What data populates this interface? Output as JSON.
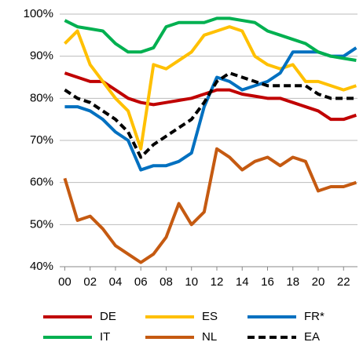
{
  "chart_data": {
    "type": "line",
    "x": [
      2000,
      2001,
      2002,
      2003,
      2004,
      2005,
      2006,
      2007,
      2008,
      2009,
      2010,
      2011,
      2012,
      2013,
      2014,
      2015,
      2016,
      2017,
      2018,
      2019,
      2020,
      2021,
      2022,
      2023
    ],
    "series": [
      {
        "name": "DE",
        "color": "#c00000",
        "dash": false,
        "values": [
          86,
          85,
          84,
          84,
          82,
          80,
          79,
          78.5,
          79,
          79.5,
          80,
          81,
          82,
          82,
          81,
          80.5,
          80,
          80,
          79,
          78,
          77,
          75,
          75,
          76
        ]
      },
      {
        "name": "ES",
        "color": "#ffc000",
        "dash": false,
        "values": [
          93,
          96,
          88,
          84,
          80,
          77,
          68,
          88,
          87,
          89,
          91,
          95,
          96,
          97,
          96,
          90,
          88,
          87,
          88,
          84,
          84,
          83,
          82,
          83
        ]
      },
      {
        "name": "FR*",
        "color": "#0070c0",
        "dash": false,
        "values": [
          78,
          78,
          77,
          75,
          72,
          70,
          63,
          64,
          64,
          65,
          67,
          78,
          85,
          84,
          82,
          83,
          84,
          86,
          91,
          91,
          91,
          90,
          90,
          92
        ]
      },
      {
        "name": "IT",
        "color": "#00b050",
        "dash": false,
        "values": [
          98.5,
          97,
          96.5,
          96,
          93,
          91,
          91,
          92,
          97,
          98,
          98,
          98,
          99,
          99,
          98.5,
          98,
          96,
          95,
          94,
          93,
          91,
          90,
          89.5,
          89
        ]
      },
      {
        "name": "NL",
        "color": "#c55a11",
        "dash": false,
        "values": [
          61,
          51,
          52,
          49,
          45,
          43,
          41,
          43,
          47,
          55,
          50,
          53,
          68,
          66,
          63,
          65,
          66,
          64,
          66,
          65,
          58,
          59,
          59,
          60
        ]
      },
      {
        "name": "EA",
        "color": "#000000",
        "dash": true,
        "values": [
          82,
          80,
          79,
          77,
          75,
          72,
          66,
          69,
          71,
          73,
          75,
          79,
          84,
          86,
          85,
          84,
          83,
          83,
          83,
          83,
          81,
          80,
          80,
          80
        ]
      }
    ],
    "xlim": [
      1999.6,
      2023.1
    ],
    "xticks": [
      {
        "value": 2000,
        "label": "00"
      },
      {
        "value": 2002,
        "label": "02"
      },
      {
        "value": 2004,
        "label": "04"
      },
      {
        "value": 2006,
        "label": "06"
      },
      {
        "value": 2008,
        "label": "08"
      },
      {
        "value": 2010,
        "label": "10"
      },
      {
        "value": 2012,
        "label": "12"
      },
      {
        "value": 2014,
        "label": "14"
      },
      {
        "value": 2016,
        "label": "16"
      },
      {
        "value": 2018,
        "label": "18"
      },
      {
        "value": 2020,
        "label": "20"
      },
      {
        "value": 2022,
        "label": "22"
      }
    ],
    "ylim": [
      40,
      100
    ],
    "yticks": [
      {
        "value": 40,
        "label": "40%"
      },
      {
        "value": 50,
        "label": "50%"
      },
      {
        "value": 60,
        "label": "60%"
      },
      {
        "value": 70,
        "label": "70%"
      },
      {
        "value": 80,
        "label": "80%"
      },
      {
        "value": 90,
        "label": "90%"
      },
      {
        "value": 100,
        "label": "100%"
      }
    ],
    "grid": true,
    "legend": "bottom"
  }
}
